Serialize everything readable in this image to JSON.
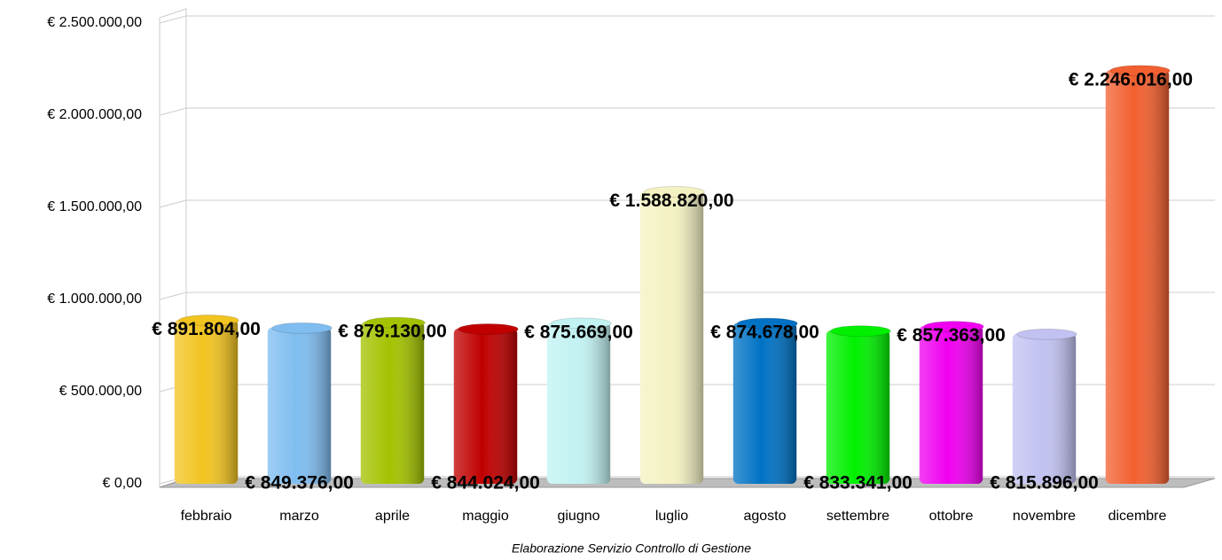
{
  "chart_data": {
    "type": "bar",
    "categories": [
      "febbraio",
      "marzo",
      "aprile",
      "maggio",
      "giugno",
      "luglio",
      "agosto",
      "settembre",
      "ottobre",
      "novembre",
      "dicembre"
    ],
    "values": [
      891804,
      849376,
      879130,
      844024,
      875669,
      1588820,
      874678,
      833341,
      857363,
      815896,
      2246016
    ],
    "value_labels": [
      "€ 891.804,00",
      "€ 849.376,00",
      "€ 879.130,00",
      "€ 844.024,00",
      "€ 875.669,00",
      "€ 1.588.820,00",
      "€ 874.678,00",
      "€ 833.341,00",
      "€ 857.363,00",
      "€ 815.896,00",
      "€ 2.246.016,00"
    ],
    "colors": [
      "#f2c420",
      "#7fbdf0",
      "#a4c200",
      "#c00000",
      "#c2f2f2",
      "#f4f2c2",
      "#0072c4",
      "#00f000",
      "#f000f0",
      "#c2c2f2",
      "#f26030"
    ],
    "ylim": [
      0,
      2500000
    ],
    "yticks": [
      {
        "value": 0,
        "label": "€ 0,00"
      },
      {
        "value": 500000,
        "label": "€ 500.000,00"
      },
      {
        "value": 1000000,
        "label": "€ 1.000.000,00"
      },
      {
        "value": 1500000,
        "label": "€ 1.500.000,00"
      },
      {
        "value": 2000000,
        "label": "€ 2.000.000,00"
      },
      {
        "value": 2500000,
        "label": "€ 2.500.000,00"
      }
    ],
    "grid": true,
    "caption": "Elaborazione Servizio Controllo di Gestione"
  }
}
